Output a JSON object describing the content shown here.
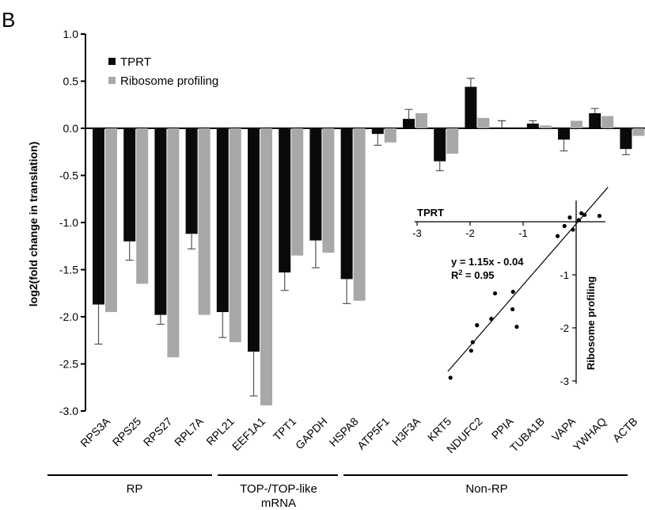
{
  "panel_label": "B",
  "chart_data": [
    {
      "type": "bar",
      "ylabel": "log2(fold change in translation)",
      "ylim": [
        -3.0,
        1.0
      ],
      "yticks": [
        "1.0",
        "0.5",
        "0.0",
        "-0.5",
        "-1.0",
        "-1.5",
        "-2.0",
        "-2.5",
        "-3.0"
      ],
      "categories": [
        "RPS3A",
        "RPS25",
        "RPS27",
        "RPL7A",
        "RPL21",
        "EEF1A1",
        "TPT1",
        "GAPDH",
        "HSPA8",
        "ATP5F1",
        "H3F3A",
        "KRT5",
        "NDUFC2",
        "PPIA",
        "TUBA1B",
        "VAPA",
        "YWHAQ",
        "ACTB"
      ],
      "series": [
        {
          "name": "TPRT",
          "color": "#0a0a0a",
          "values": [
            -1.87,
            -1.2,
            -1.98,
            -1.12,
            -1.95,
            -2.37,
            -1.53,
            -1.19,
            -1.6,
            -0.06,
            0.1,
            -0.35,
            0.44,
            0.0,
            0.05,
            -0.12,
            0.16,
            -0.22
          ],
          "errors": [
            0.42,
            0.2,
            0.1,
            0.16,
            0.27,
            0.47,
            0.19,
            0.29,
            0.26,
            0.12,
            0.1,
            0.1,
            0.09,
            0.08,
            0.03,
            0.12,
            0.05,
            0.06
          ]
        },
        {
          "name": "Ribosome profiling",
          "color": "#a8a8a8",
          "values": [
            -1.95,
            -1.65,
            -2.43,
            -1.98,
            -2.27,
            -2.94,
            -1.35,
            -1.32,
            -1.83,
            -0.15,
            0.16,
            -0.27,
            0.11,
            null,
            0.03,
            0.08,
            0.13,
            -0.08
          ]
        }
      ],
      "legend": {
        "position": "top-left",
        "entries": [
          "TPRT",
          "Ribosome profiling"
        ]
      },
      "groups": [
        {
          "label": "RP",
          "from": "RPS3A",
          "to": "RPL21"
        },
        {
          "label": "TOP-/TOP-like mRNA",
          "line1": "TOP-/TOP-like",
          "line2": "mRNA",
          "from": "EEF1A1",
          "to": "HSPA8"
        },
        {
          "label": "Non-RP",
          "from": "ATP5F1",
          "to": "ACTB"
        }
      ]
    },
    {
      "type": "scatter",
      "xlabel": "TPRT",
      "ylabel": "Ribosome profiling",
      "xlim": [
        -3,
        0.5
      ],
      "ylim": [
        -3,
        0.3
      ],
      "xticks": [
        "-3",
        "-2",
        "-1"
      ],
      "yticks": [
        "-1",
        "-2",
        "-3"
      ],
      "equation": "y = 1.15x - 0.04",
      "r2_prefix": "R",
      "r2_sup": "2",
      "r2_suffix": " = 0.95",
      "fit": {
        "slope": 1.15,
        "intercept": -0.04
      },
      "points": [
        [
          -2.37,
          -2.94
        ],
        [
          -1.98,
          -2.43
        ],
        [
          -1.95,
          -2.27
        ],
        [
          -1.87,
          -1.95
        ],
        [
          -1.6,
          -1.83
        ],
        [
          -1.53,
          -1.35
        ],
        [
          -1.2,
          -1.65
        ],
        [
          -1.19,
          -1.32
        ],
        [
          -1.12,
          -1.98
        ],
        [
          -0.35,
          -0.27
        ],
        [
          -0.22,
          -0.08
        ],
        [
          -0.12,
          0.08
        ],
        [
          -0.06,
          -0.15
        ],
        [
          0.05,
          0.03
        ],
        [
          0.1,
          0.16
        ],
        [
          0.16,
          0.13
        ],
        [
          0.44,
          0.11
        ]
      ]
    }
  ]
}
